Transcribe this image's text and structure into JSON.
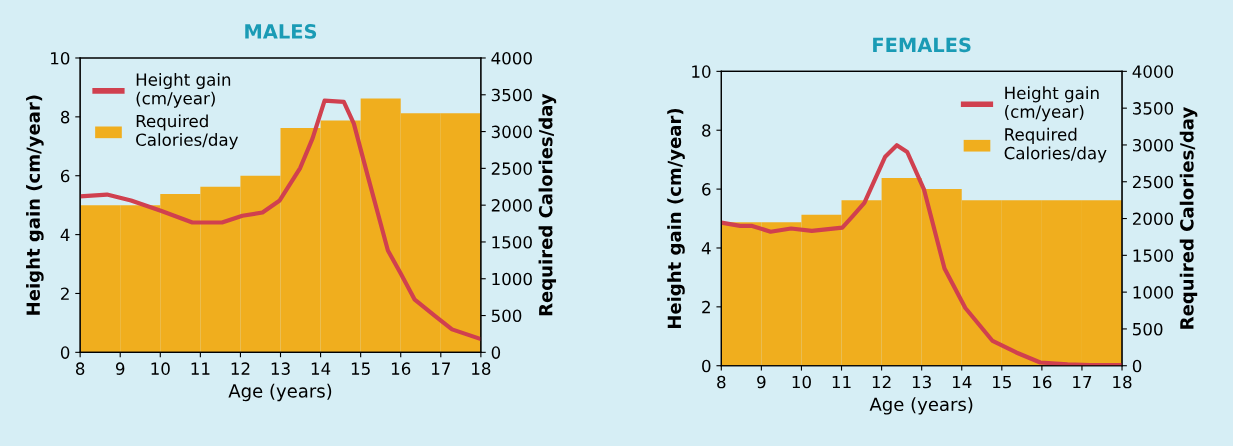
{
  "chart_data": [
    {
      "type": "line",
      "title": "MALES",
      "xlabel": "Age (years)",
      "ylabel": "Height gain (cm/year)",
      "y2label": "Required Calories/day",
      "xlim": [
        8,
        18
      ],
      "xticks": [
        8,
        9,
        10,
        11,
        12,
        13,
        14,
        15,
        16,
        17,
        18
      ],
      "ylim": [
        0,
        10
      ],
      "yticks": [
        0,
        2,
        4,
        6,
        8,
        10
      ],
      "y2lim": [
        0,
        4000
      ],
      "y2ticks": [
        0,
        500,
        1000,
        1500,
        2000,
        2500,
        3000,
        3500,
        4000
      ],
      "legend": "top left",
      "grid": false,
      "marker": "none",
      "line_style": "solid",
      "series": [
        {
          "name": "Height gain\n(cm/year)",
          "color": "#d0404f",
          "x": [
            8,
            8.67,
            9.27,
            10.03,
            10.8,
            11.54,
            12.05,
            12.55,
            12.98,
            13.49,
            13.8,
            14.1,
            14.58,
            14.83,
            15.17,
            15.68,
            16.0,
            16.35,
            16.86,
            17.28,
            18
          ],
          "values": [
            5.3,
            5.36,
            5.16,
            4.8,
            4.41,
            4.41,
            4.64,
            4.75,
            5.16,
            6.26,
            7.27,
            8.55,
            8.51,
            7.77,
            6.03,
            3.46,
            2.68,
            1.79,
            1.23,
            0.78,
            0.45
          ]
        },
        {
          "name": "Required\nCalories/day",
          "type": "histogram",
          "axis": "y2",
          "color": "#f0ae1e",
          "bins": [
            8,
            9,
            10,
            11,
            12,
            13,
            14,
            15,
            16,
            17,
            18
          ],
          "values": [
            2000,
            2000,
            2150,
            2250,
            2400,
            3050,
            3150,
            3450,
            3250,
            3250
          ]
        }
      ]
    },
    {
      "type": "line",
      "title": "FEMALES",
      "xlabel": "Age (years)",
      "ylabel": "Height gain (cm/year)",
      "y2label": "Required Calories/day",
      "xlim": [
        8,
        18
      ],
      "xticks": [
        8,
        9,
        10,
        11,
        12,
        13,
        14,
        15,
        16,
        17,
        18
      ],
      "ylim": [
        0,
        10
      ],
      "yticks": [
        0,
        2,
        4,
        6,
        8,
        10
      ],
      "y2lim": [
        0,
        4000
      ],
      "y2ticks": [
        0,
        500,
        1000,
        1500,
        2000,
        2500,
        3000,
        3500,
        4000
      ],
      "legend": "top right",
      "grid": false,
      "marker": "none",
      "line_style": "solid",
      "series": [
        {
          "name": "Height gain\n(cm/year)",
          "color": "#d0404f",
          "x": [
            8,
            8.47,
            8.77,
            9.23,
            9.74,
            10.26,
            11.02,
            11.28,
            11.57,
            12.09,
            12.38,
            12.64,
            13.06,
            13.57,
            14.09,
            14.77,
            15.36,
            15.96,
            16.64,
            17.2,
            18
          ],
          "values": [
            4.86,
            4.75,
            4.75,
            4.55,
            4.66,
            4.58,
            4.69,
            5.08,
            5.53,
            7.1,
            7.49,
            7.26,
            5.98,
            3.3,
            1.96,
            0.84,
            0.45,
            0.11,
            0.05,
            0.02,
            0.02
          ]
        },
        {
          "name": "Required\nCalories/day",
          "type": "histogram",
          "axis": "y2",
          "color": "#f0ae1e",
          "bins": [
            8,
            9,
            10,
            11,
            12,
            13,
            14,
            15,
            16,
            17,
            18
          ],
          "values": [
            1950,
            1950,
            2050,
            2250,
            2550,
            2400,
            2250,
            2250,
            2250,
            2250
          ]
        }
      ]
    }
  ]
}
